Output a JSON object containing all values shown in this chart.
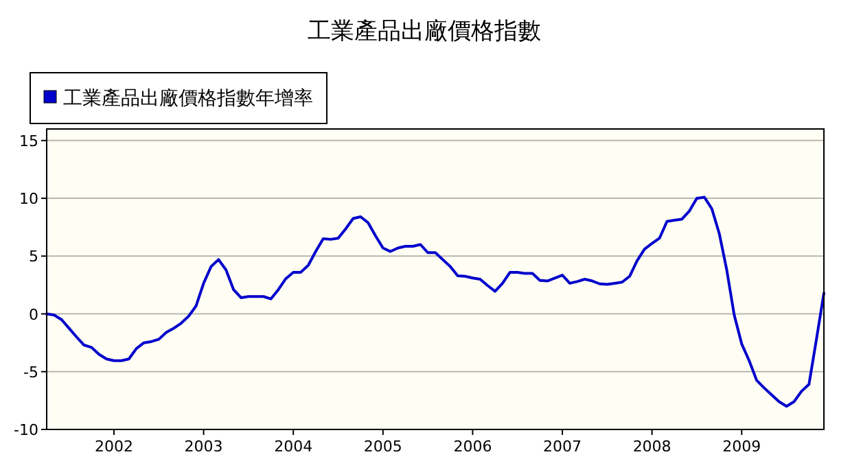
{
  "chart_data": {
    "type": "line",
    "title": "工業產品出廠價格指數",
    "x": [
      "2001-04",
      "2001-05",
      "2001-06",
      "2001-07",
      "2001-08",
      "2001-09",
      "2001-10",
      "2001-11",
      "2001-12",
      "2002-01",
      "2002-02",
      "2002-03",
      "2002-04",
      "2002-05",
      "2002-06",
      "2002-07",
      "2002-08",
      "2002-09",
      "2002-10",
      "2002-11",
      "2002-12",
      "2003-01",
      "2003-02",
      "2003-03",
      "2003-04",
      "2003-05",
      "2003-06",
      "2003-07",
      "2003-08",
      "2003-09",
      "2003-10",
      "2003-11",
      "2003-12",
      "2004-01",
      "2004-02",
      "2004-03",
      "2004-04",
      "2004-05",
      "2004-06",
      "2004-07",
      "2004-08",
      "2004-09",
      "2004-10",
      "2004-11",
      "2004-12",
      "2005-01",
      "2005-02",
      "2005-03",
      "2005-04",
      "2005-05",
      "2005-06",
      "2005-07",
      "2005-08",
      "2005-09",
      "2005-10",
      "2005-11",
      "2005-12",
      "2006-01",
      "2006-02",
      "2006-03",
      "2006-04",
      "2006-05",
      "2006-06",
      "2006-07",
      "2006-08",
      "2006-09",
      "2006-10",
      "2006-11",
      "2006-12",
      "2007-01",
      "2007-02",
      "2007-03",
      "2007-04",
      "2007-05",
      "2007-06",
      "2007-07",
      "2007-08",
      "2007-09",
      "2007-10",
      "2007-11",
      "2007-12",
      "2008-01",
      "2008-02",
      "2008-03",
      "2008-04",
      "2008-05",
      "2008-06",
      "2008-07",
      "2008-08",
      "2008-09",
      "2008-10",
      "2008-11",
      "2008-12",
      "2009-01",
      "2009-02",
      "2009-03",
      "2009-04",
      "2009-05",
      "2009-06",
      "2009-07",
      "2009-08",
      "2009-09",
      "2009-10",
      "2009-11",
      "2009-12"
    ],
    "series": [
      {
        "name": "工業產品出廠價格指數年增率",
        "color": "#0000cc",
        "values": [
          0,
          -0.1,
          -0.5,
          -1.25,
          -2.0,
          -2.7,
          -2.9,
          -3.5,
          -3.9,
          -4.05,
          -4.05,
          -3.9,
          -3.0,
          -2.5,
          -2.4,
          -2.2,
          -1.6,
          -1.25,
          -0.8,
          -0.2,
          0.7,
          2.65,
          4.1,
          4.7,
          3.8,
          2.1,
          1.4,
          1.5,
          1.5,
          1.5,
          1.3,
          2.1,
          3.05,
          3.6,
          3.6,
          4.2,
          5.4,
          6.5,
          6.45,
          6.55,
          7.35,
          8.25,
          8.4,
          7.9,
          6.75,
          5.7,
          5.4,
          5.7,
          5.85,
          5.85,
          6.0,
          5.3,
          5.3,
          4.7,
          4.1,
          3.3,
          3.25,
          3.1,
          3.0,
          2.45,
          1.95,
          2.65,
          3.6,
          3.6,
          3.5,
          3.5,
          2.9,
          2.85,
          3.1,
          3.35,
          2.65,
          2.8,
          3.0,
          2.85,
          2.6,
          2.55,
          2.65,
          2.75,
          3.25,
          4.6,
          5.6,
          6.1,
          6.55,
          8.0,
          8.1,
          8.2,
          8.9,
          10.0,
          10.1,
          9.1,
          6.95,
          3.8,
          -0.1,
          -2.6,
          -4.05,
          -5.75,
          -6.4,
          -7.0,
          -7.6,
          -8.0,
          -7.6,
          -6.7,
          -6.1,
          -2.2,
          1.8
        ]
      }
    ],
    "xlim": [
      "2001-04",
      "2009-12"
    ],
    "xticks": [
      "2002",
      "2003",
      "2004",
      "2005",
      "2006",
      "2007",
      "2008",
      "2009"
    ],
    "ylim": [
      -10,
      16
    ],
    "yticks": [
      -10,
      -5,
      0,
      5,
      10,
      15
    ],
    "grid": "y",
    "legend": "top left"
  }
}
